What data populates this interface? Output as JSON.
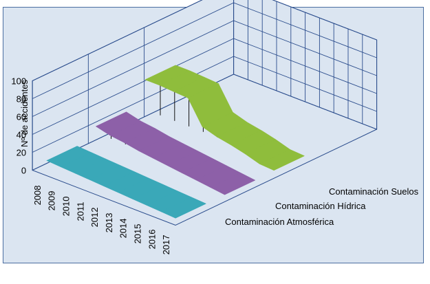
{
  "chart_data": {
    "type": "3d-surface",
    "title": "",
    "ylabel": "Nº de accidentes",
    "zlim": [
      0,
      100
    ],
    "z_ticks": [
      "0",
      "20",
      "40",
      "60",
      "80",
      "100"
    ],
    "x_categories": [
      "2008",
      "2009",
      "2010",
      "2011",
      "2012",
      "2013",
      "2014",
      "2015",
      "2016",
      "2017"
    ],
    "series": [
      {
        "name": "Contaminación Atmosférica",
        "color": "#3aa8b8",
        "values": [
          10,
          9,
          8,
          7,
          6,
          5,
          4,
          3,
          2,
          1
        ]
      },
      {
        "name": "Contaminación Hídrica",
        "color": "#8d60a8",
        "values": [
          22,
          18,
          16,
          13,
          11,
          9,
          7,
          5,
          3,
          1
        ]
      },
      {
        "name": "Contaminación Suelos",
        "color": "#8fbd3c",
        "values": [
          48,
          48,
          47,
          46,
          20,
          15,
          12,
          8,
          3,
          2
        ]
      }
    ]
  }
}
